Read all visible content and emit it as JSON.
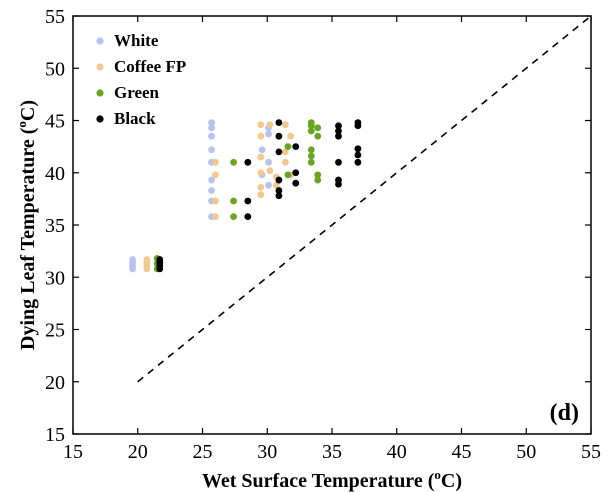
{
  "chart_data": {
    "type": "scatter",
    "xlabel_main": "Wet Surface Temperature (",
    "xlabel_sup": "o",
    "xlabel_end": "C)",
    "ylabel_main": "Dying Leaf Temperature (",
    "ylabel_sup": "o",
    "ylabel_end": "C)",
    "xlim": [
      15,
      55
    ],
    "ylim": [
      15,
      55
    ],
    "xticks": [
      15,
      20,
      25,
      30,
      35,
      40,
      45,
      50,
      55
    ],
    "yticks": [
      15,
      20,
      25,
      30,
      35,
      40,
      45,
      50,
      55
    ],
    "panel_label": "(d)",
    "legend_position": "top-left",
    "reference_line": {
      "style": "dashed",
      "from": [
        20,
        20
      ],
      "to": [
        55,
        55
      ]
    },
    "series": [
      {
        "name": "White",
        "color": "#b8c2f0",
        "points": [
          [
            19.6,
            30.8
          ],
          [
            19.6,
            31.1
          ],
          [
            19.6,
            31.4
          ],
          [
            19.6,
            31.7
          ],
          [
            25.7,
            35.8
          ],
          [
            25.7,
            37.3
          ],
          [
            25.7,
            38.3
          ],
          [
            25.7,
            39.3
          ],
          [
            25.7,
            41.0
          ],
          [
            25.7,
            42.2
          ],
          [
            25.7,
            43.5
          ],
          [
            25.7,
            44.3
          ],
          [
            25.7,
            44.8
          ],
          [
            29.6,
            39.8
          ],
          [
            29.6,
            42.2
          ],
          [
            30.1,
            38.8
          ],
          [
            30.1,
            41.0
          ],
          [
            30.1,
            43.7
          ],
          [
            30.1,
            44.3
          ]
        ]
      },
      {
        "name": "Coffee FP",
        "color": "#f0c890",
        "points": [
          [
            20.7,
            30.8
          ],
          [
            20.7,
            31.1
          ],
          [
            20.7,
            31.4
          ],
          [
            20.7,
            31.7
          ],
          [
            26.0,
            35.8
          ],
          [
            26.0,
            37.3
          ],
          [
            26.0,
            39.8
          ],
          [
            26.0,
            41.0
          ],
          [
            29.5,
            37.9
          ],
          [
            29.5,
            38.6
          ],
          [
            29.5,
            40.0
          ],
          [
            29.5,
            41.5
          ],
          [
            29.5,
            43.5
          ],
          [
            29.5,
            44.6
          ],
          [
            30.2,
            40.2
          ],
          [
            30.2,
            44.6
          ],
          [
            30.7,
            38.8
          ],
          [
            30.7,
            39.6
          ],
          [
            31.4,
            41.0
          ],
          [
            31.4,
            42.0
          ],
          [
            31.4,
            44.6
          ],
          [
            31.8,
            39.8
          ],
          [
            31.8,
            43.5
          ]
        ]
      },
      {
        "name": "Green",
        "color": "#6aa521",
        "points": [
          [
            21.5,
            30.8
          ],
          [
            21.5,
            31.3
          ],
          [
            21.5,
            31.8
          ],
          [
            27.4,
            35.8
          ],
          [
            27.4,
            37.3
          ],
          [
            27.4,
            41.0
          ],
          [
            31.6,
            39.8
          ],
          [
            31.6,
            42.5
          ],
          [
            33.4,
            41.0
          ],
          [
            33.4,
            41.6
          ],
          [
            33.4,
            42.2
          ],
          [
            33.4,
            44.0
          ],
          [
            33.4,
            44.5
          ],
          [
            33.4,
            44.8
          ],
          [
            33.9,
            39.3
          ],
          [
            33.9,
            39.8
          ],
          [
            33.9,
            43.5
          ],
          [
            33.9,
            44.3
          ]
        ]
      },
      {
        "name": "Black",
        "color": "#000000",
        "points": [
          [
            21.7,
            30.8
          ],
          [
            21.7,
            31.1
          ],
          [
            21.7,
            31.4
          ],
          [
            21.7,
            31.7
          ],
          [
            28.5,
            35.8
          ],
          [
            28.5,
            37.3
          ],
          [
            28.5,
            41.0
          ],
          [
            30.9,
            37.8
          ],
          [
            30.9,
            38.3
          ],
          [
            30.9,
            39.3
          ],
          [
            30.9,
            42.0
          ],
          [
            30.9,
            43.5
          ],
          [
            30.9,
            44.8
          ],
          [
            32.2,
            39.0
          ],
          [
            32.2,
            40.0
          ],
          [
            32.2,
            42.5
          ],
          [
            35.5,
            38.9
          ],
          [
            35.5,
            39.3
          ],
          [
            35.5,
            41.0
          ],
          [
            35.5,
            43.5
          ],
          [
            35.5,
            44.0
          ],
          [
            35.5,
            44.5
          ],
          [
            37.0,
            41.0
          ],
          [
            37.0,
            41.7
          ],
          [
            37.0,
            42.3
          ],
          [
            37.0,
            44.5
          ],
          [
            37.0,
            44.8
          ]
        ]
      }
    ]
  }
}
